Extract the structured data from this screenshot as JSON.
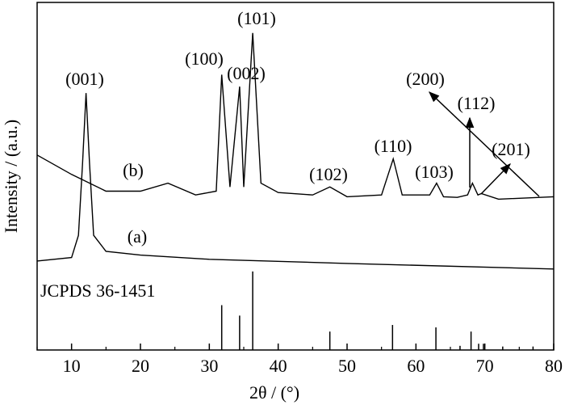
{
  "chart_data": {
    "type": "line",
    "xlabel": "2θ / (°)",
    "ylabel": "Intensity / (a.u.)",
    "xlim": [
      5,
      80
    ],
    "xticks": [
      10,
      20,
      30,
      40,
      50,
      60,
      70,
      80
    ],
    "xminorticks": [
      5,
      15,
      25,
      35,
      45,
      55,
      65,
      75
    ],
    "ylim": [
      0,
      100
    ],
    "color": "#000000",
    "series": [
      {
        "name": "(b)",
        "color": "#000000",
        "x": [
          5,
          10,
          15,
          20,
          24,
          28,
          31,
          31.8,
          33,
          34.4,
          35,
          36.3,
          37.5,
          40,
          45,
          47.5,
          50,
          55,
          56.7,
          58,
          62,
          63,
          64,
          66,
          67.5,
          68.2,
          69,
          69.5,
          72,
          80
        ],
        "values": [
          56.1,
          50.5,
          45.7,
          45.7,
          48.0,
          44.6,
          45.7,
          79.2,
          46.9,
          75.8,
          46.9,
          91.2,
          48.0,
          45.3,
          44.6,
          46.9,
          44.1,
          44.6,
          55.0,
          44.6,
          44.6,
          48.0,
          44.1,
          43.9,
          44.6,
          48.0,
          44.6,
          45.0,
          43.4,
          44.1
        ]
      },
      {
        "name": "(a)",
        "color": "#000000",
        "x": [
          5,
          10,
          11,
          11.6,
          12.1,
          12.6,
          13.2,
          15,
          20,
          30,
          50,
          80
        ],
        "values": [
          25.6,
          26.6,
          33.0,
          53.8,
          73.9,
          53.8,
          33.0,
          28.4,
          27.3,
          26.1,
          24.9,
          23.3
        ]
      }
    ],
    "reference": {
      "name": "JCPDS 36-1451",
      "color": "#000000",
      "x": [
        31.8,
        34.4,
        36.3,
        47.5,
        56.6,
        62.9,
        66.4,
        68.0,
        69.1,
        69.8,
        72.6,
        77.0
      ],
      "values": [
        12.9,
        9.9,
        22.6,
        5.3,
        7.2,
        6.5,
        1.2,
        5.3,
        1.8,
        1.8,
        1.0,
        1.0
      ]
    },
    "annotations": [
      "(001)",
      "(100)",
      "(002)",
      "(101)",
      "(102)",
      "(110)",
      "(103)",
      "(200)",
      "(112)",
      "(201)"
    ]
  }
}
